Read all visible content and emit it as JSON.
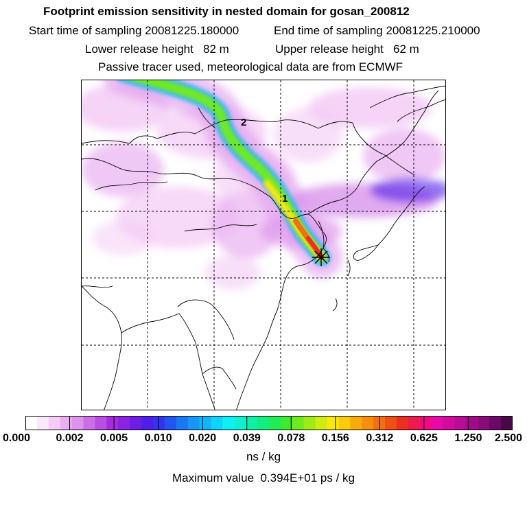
{
  "header": {
    "title": "Footprint emission sensitivity in nested domain for gosan_200812",
    "start_sampling": "Start time of sampling 20081225.180000",
    "end_sampling": "End time of sampling 20081225.210000",
    "lower_release": "Lower release height   82 m",
    "upper_release": "Upper release height   62 m",
    "tracer_note": "Passive tracer used, meteorological data are from ECMWF"
  },
  "map": {
    "trajectory_labels": [
      "2",
      "1"
    ],
    "release_marker": "release-site-star"
  },
  "colorbar": {
    "tick_labels": [
      "0.000",
      "0.002",
      "0.005",
      "0.010",
      "0.020",
      "0.039",
      "0.078",
      "0.156",
      "0.312",
      "0.625",
      "1.250",
      "2.500"
    ],
    "colors": [
      "#ffffff",
      "#fbe8fb",
      "#f4ccf6",
      "#eab0f1",
      "#dd92ec",
      "#cc6fe6",
      "#b94fe2",
      "#a52ddf",
      "#8a22e0",
      "#6e1ee4",
      "#4f1ee8",
      "#3432ec",
      "#2255f0",
      "#1a78f2",
      "#1797f5",
      "#13b5f8",
      "#10d3fa",
      "#0ef0f5",
      "#0ef0d0",
      "#0ef0a8",
      "#12ee80",
      "#20ec55",
      "#40ea30",
      "#70ea20",
      "#a0ea18",
      "#d0ec10",
      "#fae80c",
      "#faca0c",
      "#f8ac0c",
      "#f68e0e",
      "#f27012",
      "#ee5016",
      "#ea3020",
      "#ee1a50",
      "#f00a80",
      "#e80aa8",
      "#d00ca0",
      "#b80c96",
      "#a00c88",
      "#880c78",
      "#6a0a66",
      "#4a0848"
    ],
    "unit": "ns / kg",
    "max_value_text": "Maximum value  0.394E+01 ps / kg"
  }
}
